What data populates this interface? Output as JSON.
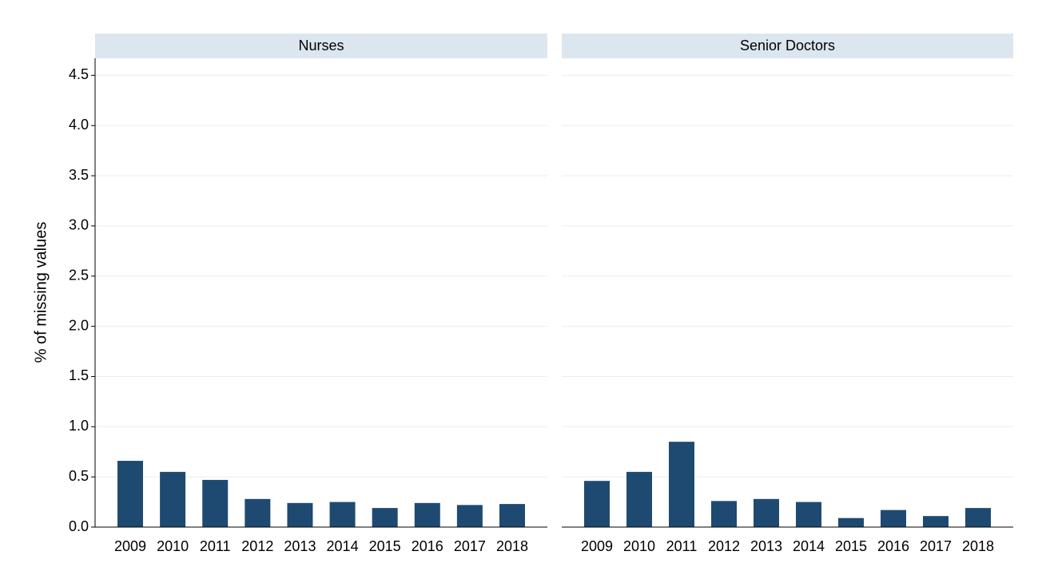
{
  "chart_data": {
    "type": "bar",
    "ylabel": "% of missing values",
    "categories": [
      "2009",
      "2010",
      "2011",
      "2012",
      "2013",
      "2014",
      "2015",
      "2016",
      "2017",
      "2018"
    ],
    "ylim": [
      0,
      4.67
    ],
    "yticks": [
      {
        "value": 0,
        "label": "0.0"
      },
      0.5,
      {
        "value": 1,
        "label": "1.0"
      },
      1.5,
      {
        "value": 2,
        "label": "2.0"
      },
      2.5,
      {
        "value": 3,
        "label": "3.0"
      },
      3.5,
      {
        "value": 4,
        "label": "4.0"
      },
      4.5
    ],
    "grid": true,
    "color": "#1e4a72",
    "panels": [
      {
        "title": "Nurses",
        "values": [
          0.66,
          0.55,
          0.47,
          0.28,
          0.24,
          0.25,
          0.19,
          0.24,
          0.22,
          0.23
        ]
      },
      {
        "title": "Senior Doctors",
        "values": [
          0.46,
          0.55,
          0.85,
          0.26,
          0.28,
          0.25,
          0.09,
          0.17,
          0.11,
          0.19
        ]
      }
    ]
  }
}
